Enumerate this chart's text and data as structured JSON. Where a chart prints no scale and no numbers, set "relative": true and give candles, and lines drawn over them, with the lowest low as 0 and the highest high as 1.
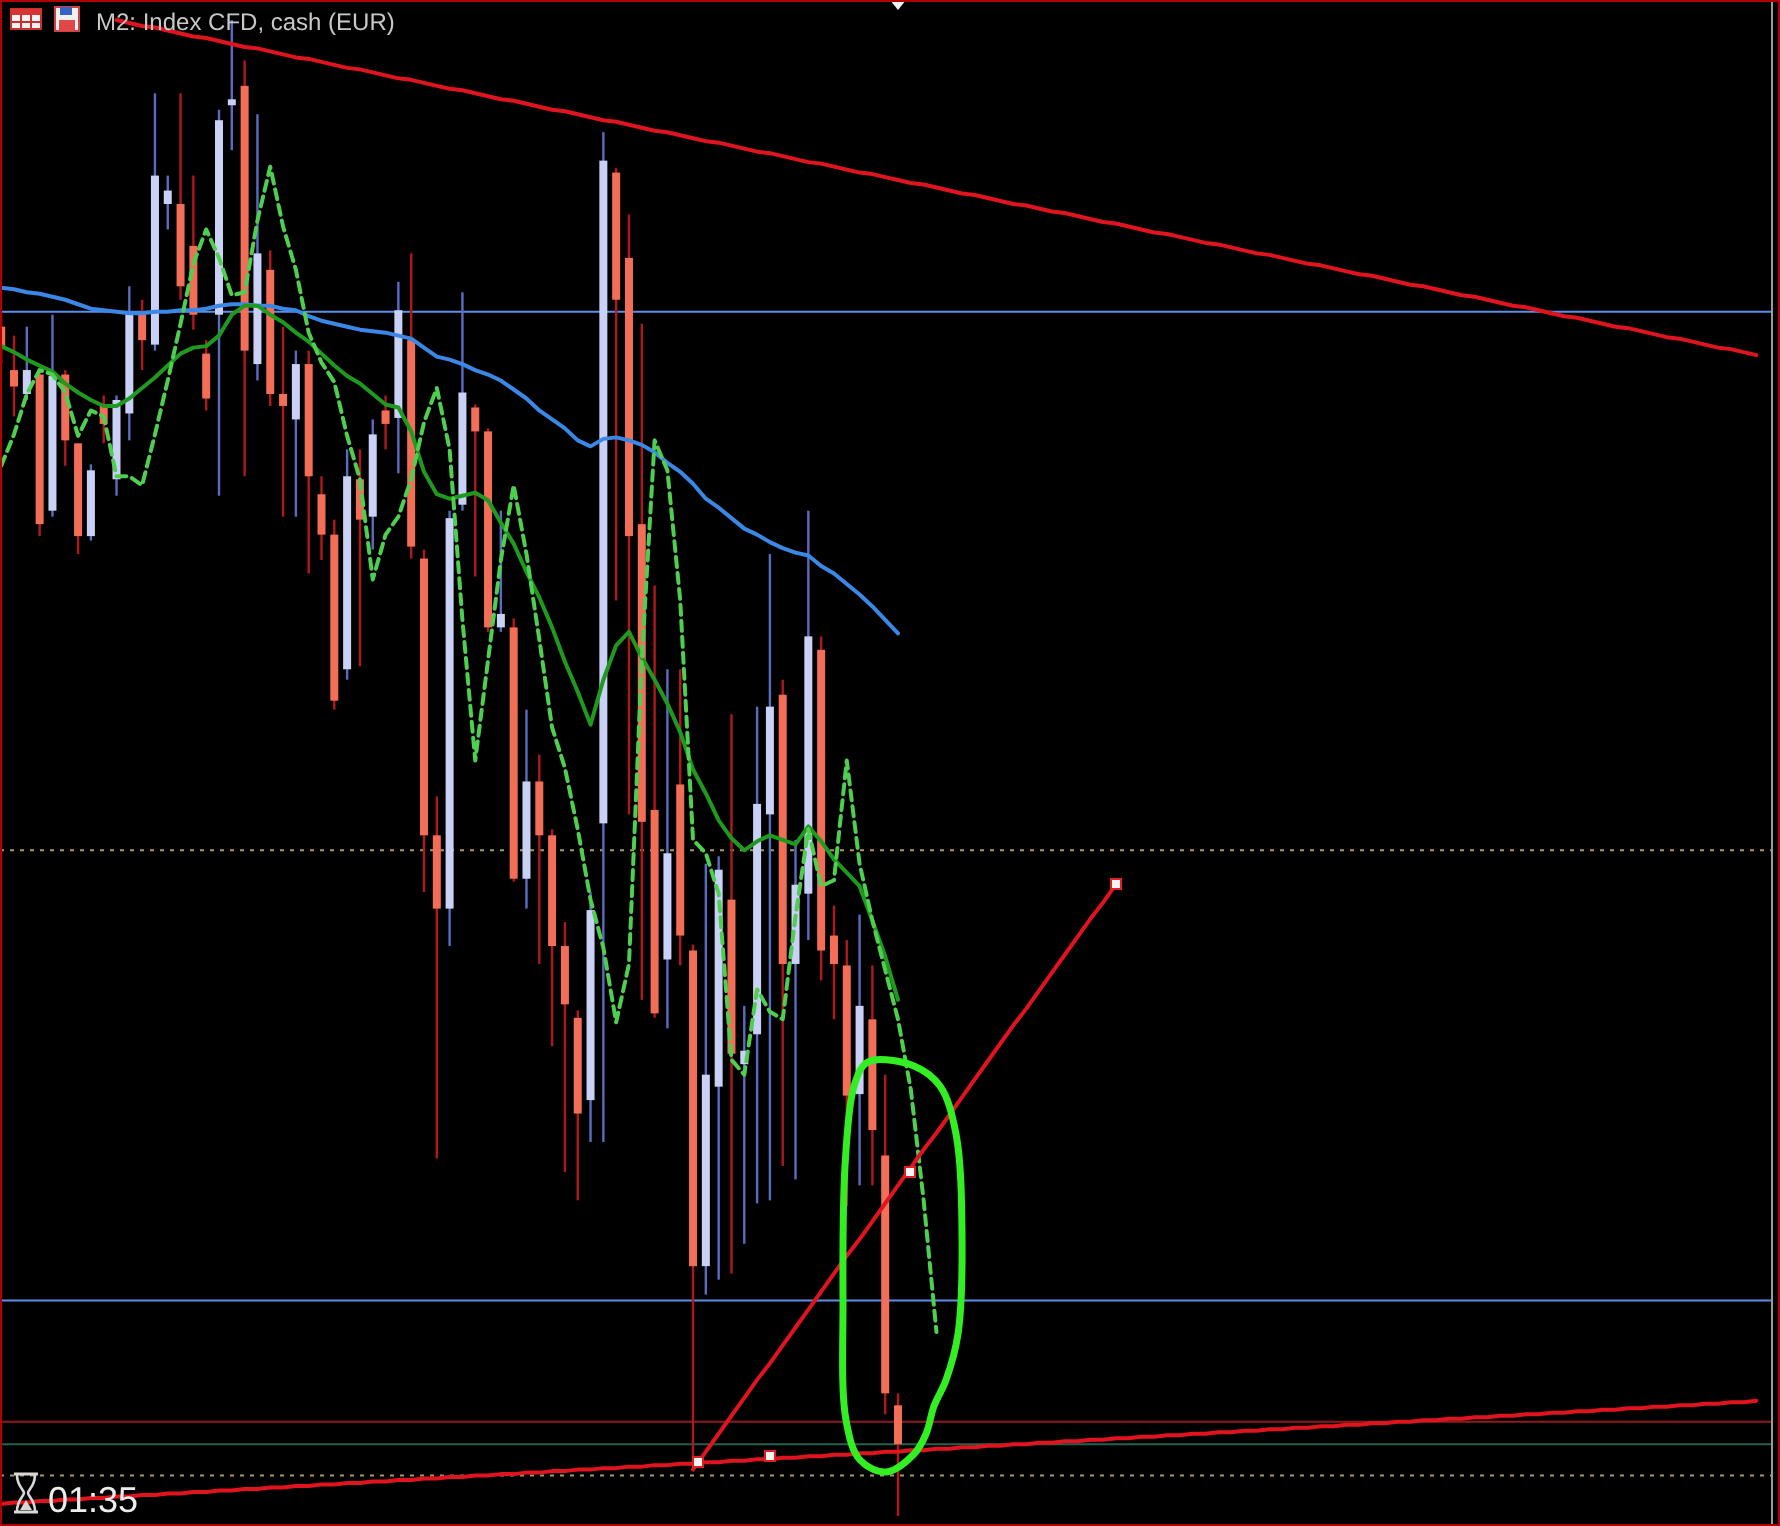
{
  "chart_data": {
    "type": "candlestick",
    "title": "M2: Index CFD, cash (EUR)",
    "annotations": [
      "01:35"
    ],
    "relative": true,
    "categories": [
      null,
      null,
      null,
      null,
      null,
      null,
      null,
      null,
      null,
      null,
      null,
      null,
      null,
      null,
      null,
      null,
      null,
      null,
      null,
      null,
      null,
      null,
      null,
      null,
      null,
      null,
      null,
      null,
      null,
      null,
      null,
      null,
      null,
      null,
      null,
      null,
      null,
      null,
      null,
      null,
      null,
      null,
      null,
      null,
      null,
      null,
      null,
      null,
      null,
      null,
      null,
      null,
      null,
      null,
      null,
      null,
      null,
      null,
      null,
      null,
      null,
      null,
      null,
      null,
      null,
      null,
      null,
      null,
      null,
      null,
      null,
      null,
      null,
      null,
      null,
      null,
      null,
      null,
      null,
      null,
      null,
      null,
      null,
      null,
      null,
      null,
      null,
      null,
      null,
      null,
      null,
      null,
      null,
      null,
      null,
      null,
      null,
      null,
      null,
      null,
      null,
      null,
      null,
      null,
      null,
      null,
      null,
      null,
      null,
      null,
      null,
      null,
      null,
      null,
      null,
      null,
      null,
      null,
      null,
      null,
      null,
      null,
      null,
      null,
      null,
      null,
      null,
      null,
      null,
      null,
      null,
      null,
      null,
      null,
      null,
      null,
      null,
      null
    ],
    "ohlc": [
      [
        0.795,
        0.802,
        0.77,
        0.782
      ],
      [
        0.766,
        0.789,
        0.735,
        0.755
      ],
      [
        0.75,
        0.795,
        0.746,
        0.766
      ],
      [
        0.763,
        0.766,
        0.655,
        0.663
      ],
      [
        0.672,
        0.803,
        0.668,
        0.762
      ],
      [
        0.763,
        0.766,
        0.702,
        0.719
      ],
      [
        0.717,
        0.717,
        0.643,
        0.655
      ],
      [
        0.655,
        0.703,
        0.652,
        0.699
      ],
      [
        0.742,
        0.749,
        0.717,
        0.73
      ],
      [
        0.693,
        0.749,
        0.682,
        0.746
      ],
      [
        0.737,
        0.822,
        0.719,
        0.803
      ],
      [
        0.803,
        0.813,
        0.766,
        0.786
      ],
      [
        0.783,
        0.951,
        0.779,
        0.896
      ],
      [
        0.877,
        0.896,
        0.86,
        0.886
      ],
      [
        0.877,
        0.951,
        0.813,
        0.822
      ],
      [
        0.849,
        0.896,
        0.793,
        0.803
      ],
      [
        0.777,
        0.786,
        0.739,
        0.747
      ],
      [
        0.803,
        0.94,
        0.682,
        0.933
      ],
      [
        0.943,
        1.0,
        0.913,
        0.947
      ],
      [
        0.956,
        0.973,
        0.695,
        0.779
      ],
      [
        0.77,
        0.937,
        0.759,
        0.844
      ],
      [
        0.833,
        0.846,
        0.742,
        0.75
      ],
      [
        0.75,
        0.795,
        0.668,
        0.742
      ],
      [
        0.733,
        0.779,
        0.668,
        0.77
      ],
      [
        0.77,
        0.779,
        0.63,
        0.695
      ],
      [
        0.683,
        0.695,
        0.639,
        0.656
      ],
      [
        0.656,
        0.666,
        0.539,
        0.545
      ],
      [
        0.566,
        0.713,
        0.559,
        0.695
      ],
      [
        0.693,
        0.713,
        0.568,
        0.666
      ],
      [
        0.668,
        0.733,
        0.646,
        0.723
      ],
      [
        0.739,
        0.749,
        0.713,
        0.73
      ],
      [
        0.734,
        0.825,
        0.697,
        0.806
      ],
      [
        0.786,
        0.844,
        0.64,
        0.648
      ],
      [
        0.64,
        0.646,
        0.417,
        0.455
      ],
      [
        0.455,
        0.481,
        0.239,
        0.406
      ],
      [
        0.406,
        0.672,
        0.381,
        0.667
      ],
      [
        0.676,
        0.818,
        0.672,
        0.751
      ],
      [
        0.741,
        0.743,
        0.628,
        0.725
      ],
      [
        0.725,
        0.727,
        0.591,
        0.594
      ],
      [
        0.594,
        0.672,
        0.591,
        0.603
      ],
      [
        0.594,
        0.6,
        0.424,
        0.426
      ],
      [
        0.426,
        0.539,
        0.406,
        0.491
      ],
      [
        0.491,
        0.509,
        0.369,
        0.455
      ],
      [
        0.455,
        0.459,
        0.314,
        0.381
      ],
      [
        0.381,
        0.397,
        0.23,
        0.342
      ],
      [
        0.333,
        0.338,
        0.211,
        0.269
      ],
      [
        0.278,
        0.417,
        0.25,
        0.405
      ],
      [
        0.463,
        0.925,
        0.25,
        0.906
      ],
      [
        0.898,
        0.901,
        0.612,
        0.813
      ],
      [
        0.841,
        0.87,
        0.469,
        0.655
      ],
      [
        0.663,
        0.797,
        0.345,
        0.464
      ],
      [
        0.472,
        0.622,
        0.333,
        0.336
      ],
      [
        0.372,
        0.566,
        0.326,
        0.443
      ],
      [
        0.489,
        0.566,
        0.368,
        0.388
      ],
      [
        0.378,
        0.382,
        0.036,
        0.167
      ],
      [
        0.167,
        0.436,
        0.148,
        0.295
      ],
      [
        0.287,
        0.441,
        0.158,
        0.432
      ],
      [
        0.412,
        0.536,
        0.162,
        0.309
      ],
      [
        0.302,
        0.341,
        0.182,
        0.311
      ],
      [
        0.322,
        0.541,
        0.209,
        0.476
      ],
      [
        0.469,
        0.643,
        0.211,
        0.541
      ],
      [
        0.549,
        0.559,
        0.234,
        0.369
      ],
      [
        0.369,
        0.452,
        0.225,
        0.422
      ],
      [
        0.416,
        0.672,
        0.385,
        0.588
      ],
      [
        0.579,
        0.588,
        0.358,
        0.378
      ],
      [
        0.388,
        0.408,
        0.332,
        0.369
      ],
      [
        0.368,
        0.385,
        0.207,
        0.281
      ],
      [
        0.282,
        0.402,
        0.221,
        0.341
      ],
      [
        0.332,
        0.368,
        0.221,
        0.258
      ],
      [
        0.241,
        0.295,
        0.068,
        0.082
      ],
      [
        0.074,
        0.082,
        0.0,
        0.048
      ],
      null,
      null,
      null,
      null,
      null,
      null,
      null,
      null,
      null,
      null,
      null,
      null,
      null,
      null,
      null,
      null,
      null,
      null,
      null,
      null,
      null,
      null,
      null,
      null,
      null,
      null,
      null,
      null,
      null,
      null,
      null,
      null,
      null,
      null,
      null,
      null,
      null,
      null,
      null,
      null,
      null,
      null,
      null,
      null,
      null,
      null,
      null,
      null,
      null,
      null,
      null,
      null,
      null,
      null,
      null,
      null,
      null,
      null,
      null,
      null,
      null,
      null,
      null,
      null,
      null,
      null,
      null
    ],
    "series": [
      {
        "type": "line",
        "color": "#3b87e6",
        "values": [
          0.821,
          0.82,
          0.818,
          0.817,
          0.815,
          0.813,
          0.81,
          0.807,
          0.806,
          0.805,
          0.804,
          0.804,
          0.805,
          0.805,
          0.806,
          0.806,
          0.807,
          0.809,
          0.81,
          0.81,
          0.809,
          0.809,
          0.807,
          0.806,
          0.802,
          0.799,
          0.797,
          0.795,
          0.793,
          0.792,
          0.791,
          0.789,
          0.787,
          0.781,
          0.775,
          0.773,
          0.77,
          0.766,
          0.763,
          0.759,
          0.753,
          0.747,
          0.739,
          0.733,
          0.727,
          0.719,
          0.715,
          0.72,
          0.721,
          0.719,
          0.716,
          0.711,
          0.704,
          0.698,
          0.69,
          0.68,
          0.674,
          0.667,
          0.66,
          0.656,
          0.651,
          0.647,
          0.644,
          0.642,
          0.635,
          0.63,
          0.623,
          0.616,
          0.608,
          0.599,
          0.59,
          null,
          null,
          null,
          null,
          null,
          null,
          null,
          null,
          null,
          null,
          null,
          null,
          null,
          null,
          null,
          null,
          null,
          null,
          null,
          null,
          null,
          null,
          null,
          null,
          null,
          null,
          null,
          null,
          null,
          null,
          null,
          null,
          null,
          null,
          null,
          null,
          null,
          null,
          null,
          null,
          null,
          null,
          null,
          null,
          null,
          null,
          null,
          null,
          null,
          null,
          null,
          null,
          null,
          null,
          null,
          null,
          null,
          null,
          null,
          null,
          null,
          null,
          null,
          null,
          null,
          null,
          null
        ]
      },
      {
        "type": "line",
        "color": "#1f9a1f",
        "values": [
          0.782,
          0.778,
          0.773,
          0.769,
          0.765,
          0.757,
          0.751,
          0.746,
          0.742,
          0.742,
          0.747,
          0.754,
          0.761,
          0.769,
          0.777,
          0.781,
          0.782,
          0.789,
          0.803,
          0.809,
          0.809,
          0.803,
          0.798,
          0.791,
          0.785,
          0.777,
          0.769,
          0.762,
          0.757,
          0.75,
          0.743,
          0.741,
          0.725,
          0.698,
          0.683,
          0.68,
          0.682,
          0.684,
          0.679,
          0.664,
          0.65,
          0.631,
          0.614,
          0.594,
          0.571,
          0.551,
          0.529,
          0.559,
          0.582,
          0.591,
          0.574,
          0.559,
          0.543,
          0.524,
          0.499,
          0.483,
          0.465,
          0.453,
          0.445,
          0.451,
          0.455,
          0.452,
          0.449,
          0.461,
          0.451,
          0.439,
          0.43,
          0.421,
          0.398,
          0.374,
          0.345,
          null,
          null,
          null,
          null,
          null,
          null,
          null,
          null,
          null,
          null,
          null,
          null,
          null,
          null,
          null,
          null,
          null,
          null,
          null,
          null,
          null,
          null,
          null,
          null,
          null,
          null,
          null,
          null,
          null,
          null,
          null,
          null,
          null,
          null,
          null,
          null,
          null,
          null,
          null,
          null,
          null,
          null,
          null,
          null,
          null,
          null,
          null,
          null,
          null,
          null,
          null,
          null,
          null,
          null,
          null,
          null,
          null,
          null,
          null,
          null,
          null,
          null,
          null,
          null,
          null,
          null,
          null
        ]
      },
      {
        "type": "line",
        "color": "#4fcf4f",
        "line_style": "dashed",
        "values": [
          0.702,
          0.723,
          0.75,
          0.766,
          0.763,
          0.751,
          0.722,
          0.739,
          0.735,
          0.695,
          0.695,
          0.689,
          0.723,
          0.759,
          0.797,
          0.837,
          0.86,
          0.841,
          0.816,
          0.818,
          0.866,
          0.902,
          0.862,
          0.833,
          0.791,
          0.771,
          0.758,
          0.722,
          0.693,
          0.626,
          0.656,
          0.668,
          0.693,
          0.731,
          0.754,
          0.713,
          0.599,
          0.505,
          0.572,
          0.639,
          0.689,
          0.643,
          0.586,
          0.527,
          0.5,
          0.459,
          0.412,
          0.38,
          0.33,
          0.369,
          0.572,
          0.719,
          0.699,
          0.612,
          0.452,
          0.443,
          0.416,
          0.305,
          0.295,
          0.352,
          0.337,
          0.332,
          0.401,
          0.459,
          0.421,
          0.425,
          0.505,
          0.436,
          0.398,
          0.365,
          0.332,
          0.285,
          0.211,
          0.123,
          null,
          null,
          null,
          null,
          null,
          null,
          null,
          null,
          null,
          null,
          null,
          null,
          null,
          null,
          null,
          null,
          null,
          null,
          null,
          null,
          null,
          null,
          null,
          null,
          null,
          null,
          null,
          null,
          null,
          null,
          null,
          null,
          null,
          null,
          null,
          null,
          null,
          null,
          null,
          null,
          null,
          null,
          null,
          null,
          null,
          null,
          null,
          null,
          null,
          null,
          null,
          null,
          null,
          null,
          null,
          null,
          null,
          null,
          null,
          null,
          null,
          null,
          null,
          null
        ]
      },
      {
        "type": "line",
        "color": "#e0141e",
        "values": [
          null,
          null,
          null,
          null,
          null,
          null,
          null,
          null,
          null,
          1.0,
          0.998,
          0.996,
          0.995,
          0.993,
          0.991,
          0.989,
          0.988,
          0.986,
          0.984,
          0.982,
          0.981,
          0.979,
          0.977,
          0.975,
          0.974,
          0.972,
          0.97,
          0.968,
          0.967,
          0.965,
          0.963,
          0.961,
          0.96,
          0.958,
          0.956,
          0.954,
          0.953,
          0.951,
          0.949,
          0.947,
          0.946,
          0.944,
          0.942,
          0.94,
          0.939,
          0.937,
          0.935,
          0.933,
          0.932,
          0.93,
          0.928,
          0.926,
          0.925,
          0.923,
          0.921,
          0.919,
          0.918,
          0.916,
          0.914,
          0.912,
          0.911,
          0.909,
          0.907,
          0.905,
          0.904,
          0.902,
          0.9,
          0.898,
          0.897,
          0.895,
          0.893,
          0.891,
          0.89,
          0.888,
          0.886,
          0.884,
          0.883,
          0.881,
          0.879,
          0.877,
          0.876,
          0.874,
          0.872,
          0.871,
          0.869,
          0.867,
          0.865,
          0.864,
          0.862,
          0.86,
          0.858,
          0.857,
          0.855,
          0.853,
          0.851,
          0.85,
          0.848,
          0.846,
          0.844,
          0.843,
          0.841,
          0.839,
          0.837,
          0.836,
          0.834,
          0.832,
          0.83,
          0.829,
          0.827,
          0.825,
          0.823,
          0.822,
          0.82,
          0.818,
          0.816,
          0.815,
          0.813,
          0.811,
          0.809,
          0.808,
          0.806,
          0.804,
          0.802,
          0.801,
          0.799,
          0.797,
          0.795,
          0.794,
          0.792,
          0.79,
          0.788,
          0.787,
          0.785,
          0.783,
          0.781,
          0.78,
          0.778,
          0.776
        ]
      },
      {
        "type": "line",
        "color": "#e0141e",
        "values": [
          0.008,
          0.009,
          0.009,
          0.01,
          0.01,
          0.011,
          0.011,
          0.012,
          0.012,
          0.013,
          0.013,
          0.014,
          0.014,
          0.015,
          0.015,
          0.016,
          0.016,
          0.017,
          0.017,
          0.018,
          0.018,
          0.019,
          0.019,
          0.02,
          0.02,
          0.021,
          0.021,
          0.022,
          0.022,
          0.023,
          0.023,
          0.024,
          0.024,
          0.025,
          0.025,
          0.026,
          0.026,
          0.027,
          0.027,
          0.028,
          0.028,
          0.029,
          0.029,
          0.03,
          0.03,
          0.031,
          0.031,
          0.032,
          0.032,
          0.033,
          0.033,
          0.034,
          0.034,
          0.035,
          0.035,
          0.036,
          0.036,
          0.037,
          0.037,
          0.038,
          0.038,
          0.039,
          0.039,
          0.04,
          0.04,
          0.041,
          0.041,
          0.042,
          0.042,
          0.043,
          0.043,
          0.044,
          0.044,
          0.045,
          0.045,
          0.046,
          0.046,
          0.047,
          0.047,
          0.048,
          0.048,
          0.049,
          0.049,
          0.05,
          0.05,
          0.051,
          0.051,
          0.052,
          0.052,
          0.053,
          0.053,
          0.054,
          0.054,
          0.055,
          0.055,
          0.056,
          0.056,
          0.057,
          0.057,
          0.058,
          0.058,
          0.059,
          0.059,
          0.06,
          0.06,
          0.061,
          0.061,
          0.062,
          0.062,
          0.063,
          0.063,
          0.064,
          0.064,
          0.065,
          0.065,
          0.066,
          0.066,
          0.067,
          0.067,
          0.068,
          0.068,
          0.069,
          0.069,
          0.07,
          0.07,
          0.071,
          0.071,
          0.072,
          0.072,
          0.073,
          0.073,
          0.074,
          0.074,
          0.075,
          0.075,
          0.076,
          0.076,
          0.077
        ]
      },
      {
        "type": "line",
        "color": "#e0141e",
        "values": [
          null,
          null,
          null,
          null,
          null,
          null,
          null,
          null,
          null,
          null,
          null,
          null,
          null,
          null,
          null,
          null,
          null,
          null,
          null,
          null,
          null,
          null,
          null,
          null,
          null,
          null,
          null,
          null,
          null,
          null,
          null,
          null,
          null,
          null,
          null,
          null,
          null,
          null,
          null,
          null,
          null,
          null,
          null,
          null,
          null,
          null,
          null,
          null,
          null,
          null,
          null,
          null,
          null,
          null,
          0.031,
          0.043,
          0.055,
          0.067,
          0.079,
          0.091,
          0.102,
          0.114,
          0.126,
          0.138,
          0.15,
          0.162,
          0.174,
          0.185,
          0.197,
          0.209,
          0.221,
          0.233,
          0.245,
          0.256,
          0.268,
          0.28,
          0.292,
          0.304,
          0.316,
          0.328,
          0.339,
          0.351,
          0.363,
          0.375,
          0.387,
          0.399,
          0.41,
          0.422,
          null,
          null,
          null,
          null,
          null,
          null,
          null,
          null,
          null,
          null,
          null,
          null,
          null,
          null,
          null,
          null,
          null,
          null,
          null,
          null,
          null,
          null,
          null,
          null,
          null,
          null,
          null,
          null,
          null,
          null,
          null,
          null,
          null,
          null,
          null,
          null,
          null,
          null,
          null,
          null,
          null,
          null,
          null,
          null,
          null,
          null,
          null,
          null,
          null,
          null
        ]
      }
    ],
    "ref_lines": [
      {
        "axis": "y",
        "value": 0.805,
        "color": "#5b8fe8"
      },
      {
        "axis": "y",
        "value": 0.144,
        "color": "#5b8fe8"
      },
      {
        "axis": "y",
        "value": 0.445,
        "color": "#a89a5c",
        "line_style": "dotted"
      },
      {
        "axis": "y",
        "value": 0.027,
        "color": "#a89a5c",
        "line_style": "dotted"
      },
      {
        "axis": "y",
        "value": 0.063,
        "color": "#8e1c1c"
      },
      {
        "axis": "y",
        "value": 0.048,
        "color": "#24614f"
      }
    ]
  }
}
